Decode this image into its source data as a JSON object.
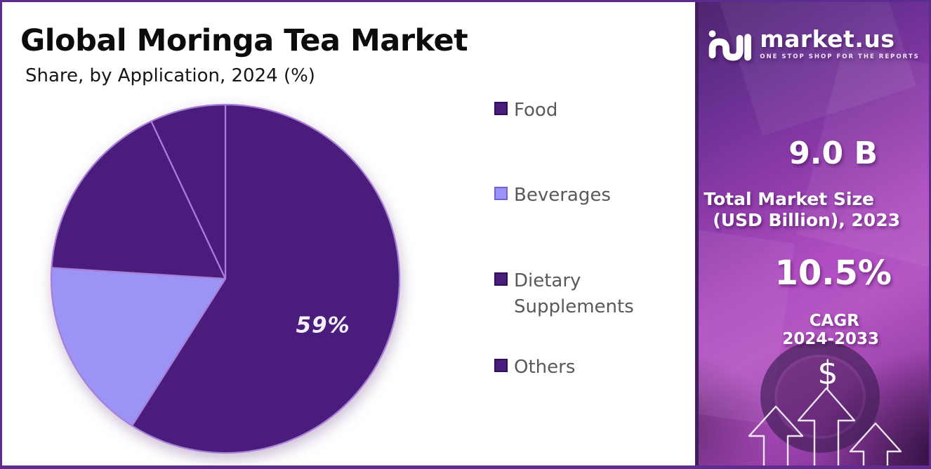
{
  "header": {
    "title": "Global Moringa Tea Market",
    "subtitle": "Share, by Application, 2024 (%)"
  },
  "chart_data": {
    "type": "pie",
    "title": "Global Moringa Tea Market",
    "subtitle": "Share, by Application, 2024 (%)",
    "units": "%",
    "direction": "clockwise",
    "start_angle_deg": 0,
    "legend_position": "right",
    "slices": [
      {
        "name": "Food",
        "value": 59,
        "label": "59%",
        "color": "#4a1d7c",
        "legend_border": "#2f1058"
      },
      {
        "name": "Beverages",
        "value": 17,
        "label": "",
        "color": "#9b93f6",
        "legend_border": "#7361d0"
      },
      {
        "name": "Dietary Supplements",
        "value": 17,
        "label": "",
        "color": "#4a1d7c",
        "legend_border": "#2f1058"
      },
      {
        "name": "Others",
        "value": 7,
        "label": "",
        "color": "#4a1d7c",
        "legend_border": "#2f1058"
      }
    ]
  },
  "sidebar": {
    "brand": "market.us",
    "tagline": "ONE STOP SHOP FOR THE REPORTS",
    "market_size_value": "9.0 B",
    "market_size_label1": "Total Market Size",
    "market_size_label2": "(USD Billion), 2023",
    "cagr_value": "10.5%",
    "cagr_label1": "CAGR",
    "cagr_label2": "2024-2033",
    "dollar_symbol": "$"
  },
  "colors": {
    "frame_border": "#5e2c90",
    "pie_dark": "#4a1d7c",
    "pie_light": "#9b93f6",
    "slice_stroke": "#a87fd6",
    "pie_label_text": "#f5effc",
    "legend_text": "#58595b",
    "title_text": "#0c0c0c",
    "sidebar_left_border": "#401d5e"
  }
}
